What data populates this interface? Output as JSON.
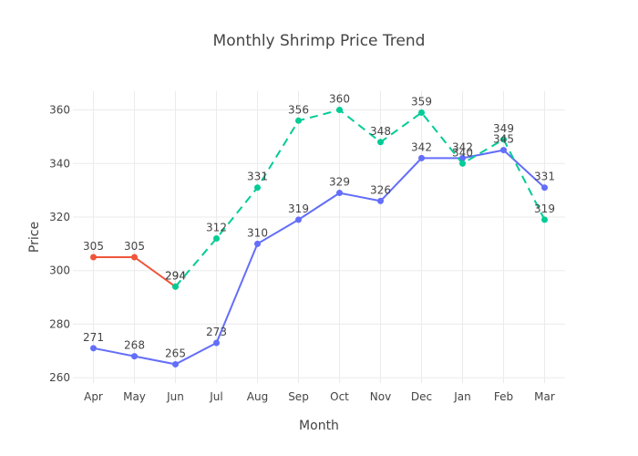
{
  "chart_data": {
    "type": "line",
    "title": "Monthly Shrimp Price Trend",
    "xlabel": "Month",
    "ylabel": "Price",
    "categories": [
      "Apr",
      "May",
      "Jun",
      "Jul",
      "Aug",
      "Sep",
      "Oct",
      "Nov",
      "Dec",
      "Jan",
      "Feb",
      "Mar"
    ],
    "ylim": [
      258,
      367
    ],
    "yticks": [
      260,
      280,
      300,
      320,
      340,
      360
    ],
    "grid": true,
    "series": [
      {
        "color": "#636efa",
        "dash": "solid",
        "labels": "above",
        "points": [
          {
            "x": "Apr",
            "y": 271
          },
          {
            "x": "May",
            "y": 268
          },
          {
            "x": "Jun",
            "y": 265
          },
          {
            "x": "Jul",
            "y": 273
          },
          {
            "x": "Aug",
            "y": 310
          },
          {
            "x": "Sep",
            "y": 319
          },
          {
            "x": "Oct",
            "y": 329
          },
          {
            "x": "Nov",
            "y": 326
          },
          {
            "x": "Dec",
            "y": 342
          },
          {
            "x": "Jan",
            "y": 342
          },
          {
            "x": "Feb",
            "y": 345
          },
          {
            "x": "Mar",
            "y": 331
          }
        ]
      },
      {
        "color": "#ef553b",
        "dash": "solid",
        "labels": "above",
        "points": [
          {
            "x": "Apr",
            "y": 305
          },
          {
            "x": "May",
            "y": 305
          },
          {
            "x": "Jun",
            "y": 294
          }
        ]
      },
      {
        "color": "#00cc96",
        "dash": "dashed",
        "labels": "above",
        "points": [
          {
            "x": "Jun",
            "y": 294
          },
          {
            "x": "Jul",
            "y": 312
          },
          {
            "x": "Aug",
            "y": 331
          },
          {
            "x": "Sep",
            "y": 356
          },
          {
            "x": "Oct",
            "y": 360
          },
          {
            "x": "Nov",
            "y": 348
          },
          {
            "x": "Dec",
            "y": 359
          },
          {
            "x": "Jan",
            "y": 340
          },
          {
            "x": "Feb",
            "y": 349
          },
          {
            "x": "Mar",
            "y": 319
          }
        ]
      }
    ]
  }
}
